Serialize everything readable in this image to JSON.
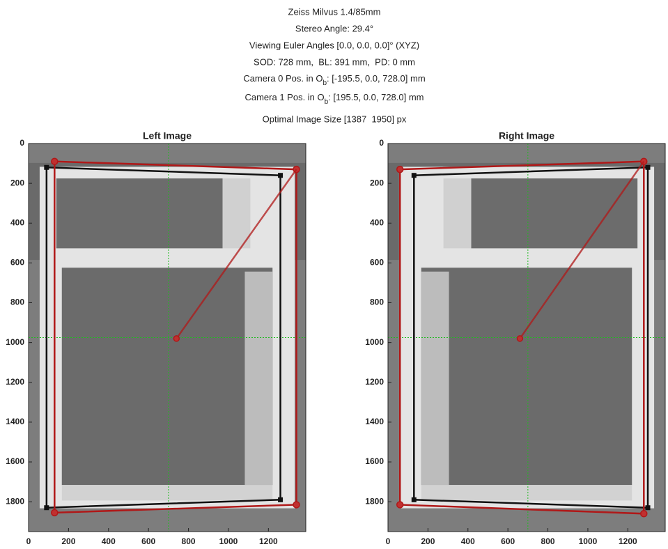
{
  "title_lines": [
    {
      "text": "Zeiss Milvus 1.4/85mm"
    },
    {
      "text": "Stereo Angle: 29.4°"
    },
    {
      "text": "Viewing Euler Angles [0.0, 0.0, 0.0]° (XYZ)"
    },
    {
      "text": "SOD: 728 mm,  BL: 391 mm,  PD: 0 mm"
    },
    {
      "text": "Camera 0 Pos. in O",
      "sub": "b",
      "rest": ": [-195.5, 0.0, 728.0] mm"
    },
    {
      "text": "Camera 1 Pos. in O",
      "sub": "b",
      "rest": ": [195.5, 0.0, 728.0] mm"
    },
    {
      "text": "Optimal Image Size [1387  1950] px"
    }
  ],
  "chart_data": [
    {
      "type": "image",
      "title": "Left Image",
      "xlim": [
        0,
        1387
      ],
      "ylim": [
        0,
        1950
      ],
      "y_reversed": true,
      "xticks": [
        0,
        200,
        400,
        600,
        800,
        1000,
        1200
      ],
      "yticks": [
        0,
        200,
        400,
        600,
        800,
        1000,
        1200,
        1400,
        1600,
        1800
      ],
      "mirror": false,
      "crosshair_x": 700,
      "crosshair_y": 975,
      "crosshair_color": "#22bb22",
      "series": [
        {
          "color": "#111111",
          "marker": "square",
          "x": [
            90,
            1260,
            1260,
            90
          ],
          "y": [
            120,
            160,
            1790,
            1830
          ]
        },
        {
          "color": "#b01818",
          "marker": "circle",
          "x": [
            130,
            1340,
            1340,
            130
          ],
          "y": [
            90,
            130,
            1815,
            1855
          ]
        }
      ],
      "ray": {
        "color": "#b01818",
        "x": [
          740,
          1340
        ],
        "y": [
          980,
          130
        ]
      }
    },
    {
      "type": "image",
      "title": "Right Image",
      "xlim": [
        0,
        1387
      ],
      "ylim": [
        0,
        1950
      ],
      "y_reversed": true,
      "xticks": [
        0,
        200,
        400,
        600,
        800,
        1000,
        1200
      ],
      "yticks": [
        0,
        200,
        400,
        600,
        800,
        1000,
        1200,
        1400,
        1600,
        1800
      ],
      "mirror": true,
      "crosshair_x": 700,
      "crosshair_y": 975,
      "crosshair_color": "#22bb22",
      "series": [
        {
          "color": "#111111",
          "marker": "square",
          "x": [
            130,
            1300,
            1300,
            130
          ],
          "y": [
            160,
            120,
            1830,
            1790
          ]
        },
        {
          "color": "#b01818",
          "marker": "circle",
          "x": [
            60,
            1280,
            1280,
            60
          ],
          "y": [
            130,
            90,
            1860,
            1815
          ]
        }
      ],
      "ray": {
        "color": "#b01818",
        "x": [
          660,
          1280
        ],
        "y": [
          980,
          90
        ]
      }
    }
  ]
}
